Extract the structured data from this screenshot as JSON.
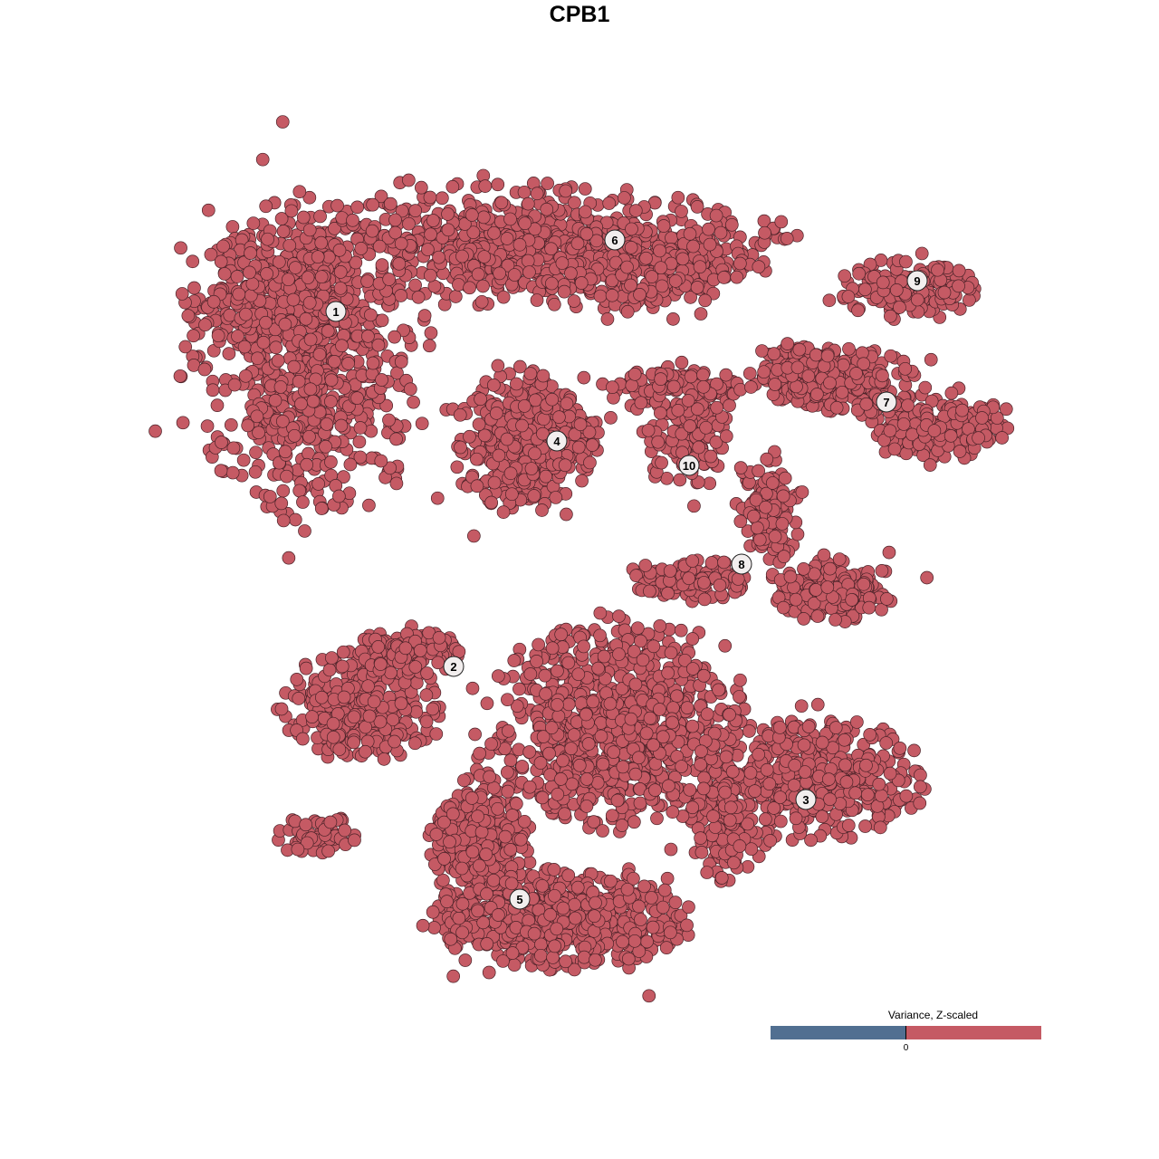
{
  "chart_data": {
    "type": "scatter",
    "title": "CPB1",
    "xlabel": "",
    "ylabel": "",
    "axes_visible": false,
    "grid": false,
    "point_color": "#c55a64",
    "point_outline": "#4a2228",
    "cluster_labels": [
      "1",
      "2",
      "3",
      "4",
      "5",
      "6",
      "7",
      "8",
      "9",
      "10"
    ],
    "colorbar": {
      "title": "Variance, Z-scaled",
      "tick_labels": [
        "0"
      ],
      "low_color": "#516f91",
      "high_color": "#c55a64",
      "placement": "bottom-right"
    }
  }
}
